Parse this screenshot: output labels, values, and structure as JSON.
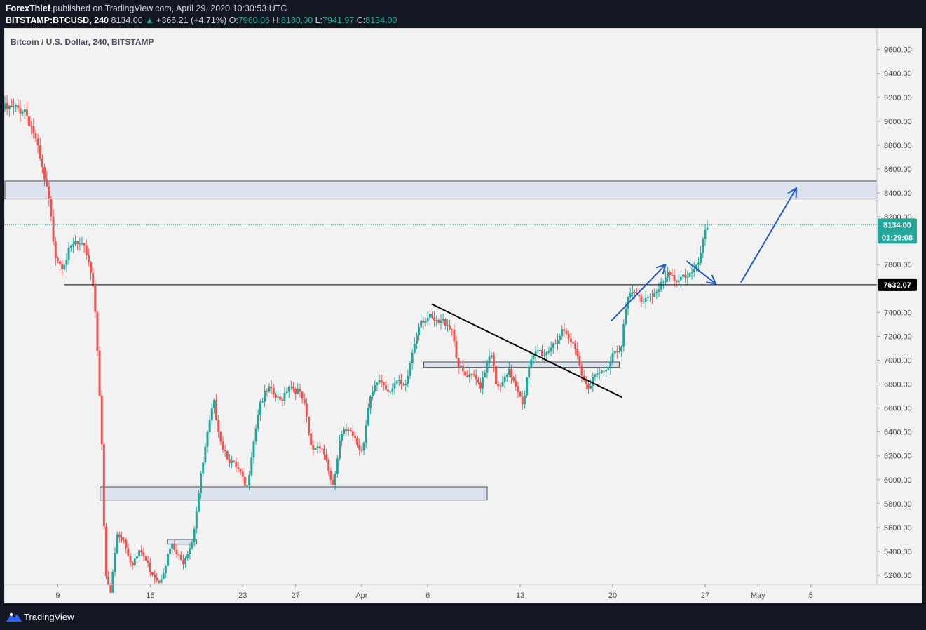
{
  "header": {
    "author": "ForexThief",
    "published_text": "published on TradingView.com, April 29, 2020 10:30:53 UTC",
    "symbol": "BITSTAMP:BTCUSD, 240",
    "last_price": "8134.00",
    "change_arrow": "▲",
    "change": "+366.21 (+4.71%)",
    "o_label": "O:",
    "o_value": "7960.06",
    "h_label": "H:",
    "h_value": "8180.00",
    "l_label": "L:",
    "l_value": "7941.97",
    "c_label": "C:",
    "c_value": "8134.00"
  },
  "footer": {
    "brand": "TradingView"
  },
  "colors": {
    "up": "#26a69a",
    "down": "#ef5350",
    "zone_fill": "#dde3ee",
    "arrow": "#1e5bc6",
    "background": "#f2f2f2"
  },
  "chart_data": {
    "type": "candlestick",
    "title": "Bitcoin / U.S. Dollar, 240, BITSTAMP",
    "ylim": [
      5120,
      9780
    ],
    "y_ticks": [
      "9600.00",
      "9400.00",
      "9200.00",
      "9000.00",
      "8800.00",
      "8600.00",
      "8400.00",
      "8200.00",
      "7800.00",
      "7400.00",
      "7200.00",
      "7000.00",
      "6800.00",
      "6600.00",
      "6400.00",
      "6200.00",
      "6000.00",
      "5800.00",
      "5600.00",
      "5400.00",
      "5200.00"
    ],
    "x_ticks": [
      {
        "label": "9",
        "day": 9
      },
      {
        "label": "16",
        "day": 16
      },
      {
        "label": "23",
        "day": 23
      },
      {
        "label": "27",
        "day": 27
      },
      {
        "label": "Apr",
        "day": 32
      },
      {
        "label": "6",
        "day": 37
      },
      {
        "label": "13",
        "day": 44
      },
      {
        "label": "20",
        "day": 51
      },
      {
        "label": "27",
        "day": 58
      },
      {
        "label": "May",
        "day": 62
      },
      {
        "label": "5",
        "day": 66
      }
    ],
    "x_axis_note": "day = day of March 2020 (32 = April 1)",
    "xlim": [
      5.0,
      71.0
    ],
    "price_label": "8134.00",
    "countdown_label": "01:29:08",
    "level_label": "7632.07",
    "price_line": 8134,
    "key_level": {
      "value": 7632.07,
      "from_day": 9.5
    },
    "zones": [
      {
        "name": "resistance-zone",
        "from_day": 5.0,
        "to_day": 71.0,
        "low": 8350,
        "high": 8500
      },
      {
        "name": "support-zone-lower",
        "from_day": 12.2,
        "to_day": 41.5,
        "low": 5830,
        "high": 5940
      },
      {
        "name": "support-zone-mid",
        "from_day": 36.7,
        "to_day": 51.5,
        "low": 6940,
        "high": 6985
      },
      {
        "name": "support-zone-small",
        "from_day": 17.3,
        "to_day": 19.5,
        "low": 5460,
        "high": 5500
      }
    ],
    "trendline": {
      "from": {
        "day": 37.3,
        "price": 7470
      },
      "to": {
        "day": 51.7,
        "price": 6690
      }
    },
    "arrows": [
      {
        "from": {
          "day": 50.9,
          "price": 7330
        },
        "to": {
          "day": 55.0,
          "price": 7800
        }
      },
      {
        "from": {
          "day": 56.6,
          "price": 7830
        },
        "to": {
          "day": 58.8,
          "price": 7640
        }
      },
      {
        "from": {
          "day": 60.7,
          "price": 7650
        },
        "to": {
          "day": 64.9,
          "price": 8440
        }
      }
    ],
    "anchors": [
      {
        "day": 5.0,
        "price": 9100
      },
      {
        "day": 6.5,
        "price": 9100
      },
      {
        "day": 7.2,
        "price": 8900
      },
      {
        "day": 7.6,
        "price": 8700
      },
      {
        "day": 8.3,
        "price": 8350
      },
      {
        "day": 8.8,
        "price": 7900
      },
      {
        "day": 9.3,
        "price": 7800
      },
      {
        "day": 10.3,
        "price": 7980
      },
      {
        "day": 11.2,
        "price": 7900
      },
      {
        "day": 11.6,
        "price": 7700
      },
      {
        "day": 11.9,
        "price": 7350
      },
      {
        "day": 12.3,
        "price": 6400
      },
      {
        "day": 12.6,
        "price": 5200
      },
      {
        "day": 13.0,
        "price": 5050
      },
      {
        "day": 13.5,
        "price": 5550
      },
      {
        "day": 14.0,
        "price": 5500
      },
      {
        "day": 14.6,
        "price": 5300
      },
      {
        "day": 15.3,
        "price": 5400
      },
      {
        "day": 16.0,
        "price": 5250
      },
      {
        "day": 16.7,
        "price": 5150
      },
      {
        "day": 17.6,
        "price": 5450
      },
      {
        "day": 18.4,
        "price": 5300
      },
      {
        "day": 19.2,
        "price": 5500
      },
      {
        "day": 19.8,
        "price": 6000
      },
      {
        "day": 20.3,
        "price": 6350
      },
      {
        "day": 20.8,
        "price": 6650
      },
      {
        "day": 21.4,
        "price": 6300
      },
      {
        "day": 22.1,
        "price": 6150
      },
      {
        "day": 22.8,
        "price": 6050
      },
      {
        "day": 23.3,
        "price": 5900
      },
      {
        "day": 23.7,
        "price": 6250
      },
      {
        "day": 24.3,
        "price": 6650
      },
      {
        "day": 25.0,
        "price": 6750
      },
      {
        "day": 25.8,
        "price": 6650
      },
      {
        "day": 26.5,
        "price": 6800
      },
      {
        "day": 27.1,
        "price": 6750
      },
      {
        "day": 27.6,
        "price": 6650
      },
      {
        "day": 28.2,
        "price": 6250
      },
      {
        "day": 28.9,
        "price": 6300
      },
      {
        "day": 29.4,
        "price": 6150
      },
      {
        "day": 29.8,
        "price": 5900
      },
      {
        "day": 30.4,
        "price": 6350
      },
      {
        "day": 31.1,
        "price": 6450
      },
      {
        "day": 31.7,
        "price": 6300
      },
      {
        "day": 32.1,
        "price": 6250
      },
      {
        "day": 32.6,
        "price": 6650
      },
      {
        "day": 33.3,
        "price": 6850
      },
      {
        "day": 34.0,
        "price": 6750
      },
      {
        "day": 34.6,
        "price": 6820
      },
      {
        "day": 35.3,
        "price": 6750
      },
      {
        "day": 35.8,
        "price": 7050
      },
      {
        "day": 36.4,
        "price": 7350
      },
      {
        "day": 37.1,
        "price": 7350
      },
      {
        "day": 37.7,
        "price": 7300
      },
      {
        "day": 38.4,
        "price": 7330
      },
      {
        "day": 38.9,
        "price": 7250
      },
      {
        "day": 39.3,
        "price": 6950
      },
      {
        "day": 39.9,
        "price": 6850
      },
      {
        "day": 40.5,
        "price": 6850
      },
      {
        "day": 41.0,
        "price": 6800
      },
      {
        "day": 41.4,
        "price": 6950
      },
      {
        "day": 41.8,
        "price": 7100
      },
      {
        "day": 42.2,
        "price": 6750
      },
      {
        "day": 42.7,
        "price": 6800
      },
      {
        "day": 43.2,
        "price": 6900
      },
      {
        "day": 43.7,
        "price": 6800
      },
      {
        "day": 44.2,
        "price": 6650
      },
      {
        "day": 44.7,
        "price": 6950
      },
      {
        "day": 45.3,
        "price": 7080
      },
      {
        "day": 45.9,
        "price": 7050
      },
      {
        "day": 46.5,
        "price": 7150
      },
      {
        "day": 47.2,
        "price": 7220
      },
      {
        "day": 47.8,
        "price": 7150
      },
      {
        "day": 48.3,
        "price": 7100
      },
      {
        "day": 48.7,
        "price": 6850
      },
      {
        "day": 49.2,
        "price": 6800
      },
      {
        "day": 49.9,
        "price": 6880
      },
      {
        "day": 50.5,
        "price": 6900
      },
      {
        "day": 51.1,
        "price": 7100
      },
      {
        "day": 51.6,
        "price": 7100
      },
      {
        "day": 52.1,
        "price": 7500
      },
      {
        "day": 52.6,
        "price": 7560
      },
      {
        "day": 53.2,
        "price": 7500
      },
      {
        "day": 53.8,
        "price": 7550
      },
      {
        "day": 54.5,
        "price": 7580
      },
      {
        "day": 55.1,
        "price": 7700
      },
      {
        "day": 55.7,
        "price": 7680
      },
      {
        "day": 56.3,
        "price": 7720
      },
      {
        "day": 56.9,
        "price": 7710
      },
      {
        "day": 57.4,
        "price": 7760
      },
      {
        "day": 57.8,
        "price": 7960
      },
      {
        "day": 58.2,
        "price": 8134
      }
    ]
  }
}
